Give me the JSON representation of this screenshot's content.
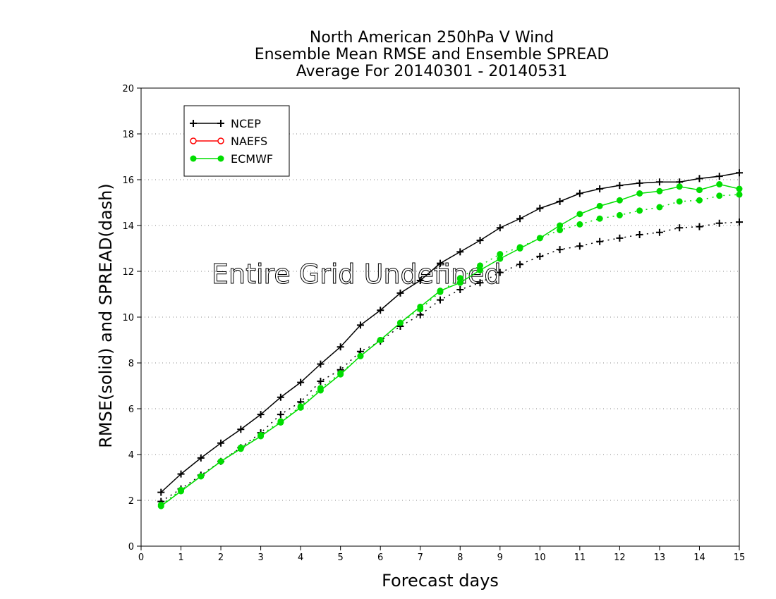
{
  "chart_data": {
    "type": "line",
    "title": [
      "North American 250hPa V Wind",
      "Ensemble Mean RMSE and Ensemble SPREAD",
      "Average For 20140301 - 20140531"
    ],
    "xlabel": "Forecast days",
    "ylabel": "RMSE(solid) and SPREAD(dash)",
    "xlim": [
      0,
      15
    ],
    "ylim": [
      0,
      20
    ],
    "xticks": [
      "0",
      "1",
      "2",
      "3",
      "4",
      "5",
      "6",
      "7",
      "8",
      "9",
      "10",
      "11",
      "12",
      "13",
      "14",
      "15"
    ],
    "yticks": [
      "0",
      "2",
      "4",
      "6",
      "8",
      "10",
      "12",
      "14",
      "16",
      "18",
      "20"
    ],
    "grid": "dotted horizontal",
    "legend_position": "top-left",
    "annotation": "Entire Grid Undefined",
    "x": [
      0.5,
      1,
      1.5,
      2,
      2.5,
      3,
      3.5,
      4,
      4.5,
      5,
      5.5,
      6,
      6.5,
      7,
      7.5,
      8,
      8.5,
      9,
      9.5,
      10,
      10.5,
      11,
      11.5,
      12,
      12.5,
      13,
      13.5,
      14,
      14.5,
      15
    ],
    "series": [
      {
        "name": "NCEP",
        "color": "#000000",
        "marker": "plus",
        "rmse": [
          2.35,
          3.15,
          3.85,
          4.5,
          5.1,
          5.75,
          6.5,
          7.15,
          7.95,
          8.7,
          9.65,
          10.3,
          11.05,
          11.6,
          12.35,
          12.85,
          13.35,
          13.9,
          14.3,
          14.75,
          15.05,
          15.4,
          15.6,
          15.75,
          15.85,
          15.9,
          15.9,
          16.05,
          16.15,
          16.3
        ],
        "spread": [
          1.95,
          2.5,
          3.1,
          3.7,
          4.3,
          4.95,
          5.75,
          6.3,
          7.2,
          7.7,
          8.5,
          8.95,
          9.6,
          10.1,
          10.75,
          11.2,
          11.5,
          11.95,
          12.3,
          12.65,
          12.95,
          13.1,
          13.3,
          13.45,
          13.6,
          13.7,
          13.9,
          13.95,
          14.1,
          14.15
        ]
      },
      {
        "name": "NAEFS",
        "color": "#ff0000",
        "marker": "open-circle",
        "rmse": [],
        "spread": []
      },
      {
        "name": "ECMWF",
        "color": "#00dd00",
        "marker": "filled-circle",
        "rmse": [
          1.75,
          2.4,
          3.05,
          3.7,
          4.25,
          4.8,
          5.4,
          6.05,
          6.8,
          7.5,
          8.3,
          9.0,
          9.75,
          10.45,
          11.15,
          11.5,
          12.05,
          12.55,
          13.0,
          13.45,
          14.0,
          14.5,
          14.85,
          15.1,
          15.4,
          15.5,
          15.7,
          15.55,
          15.8,
          15.6
        ],
        "spread": [
          1.8,
          2.45,
          3.05,
          3.7,
          4.3,
          4.85,
          5.45,
          6.1,
          6.9,
          7.55,
          8.3,
          9.0,
          9.75,
          10.35,
          11.1,
          11.7,
          12.25,
          12.75,
          13.05,
          13.45,
          13.8,
          14.05,
          14.3,
          14.45,
          14.65,
          14.8,
          15.05,
          15.1,
          15.3,
          15.35
        ]
      }
    ]
  }
}
